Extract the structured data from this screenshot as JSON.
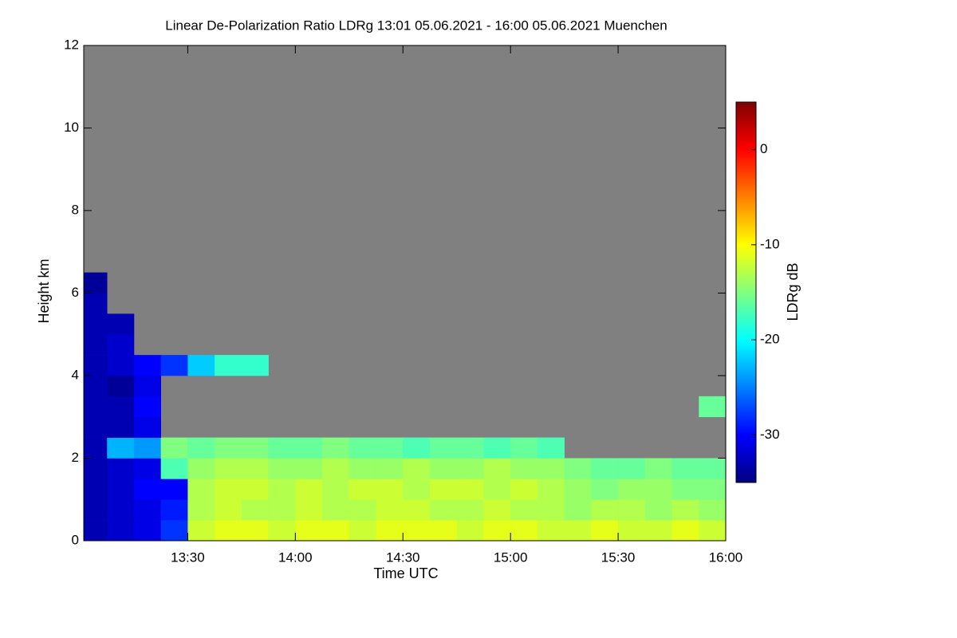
{
  "chart_data": {
    "type": "heatmap",
    "title": "Linear De-Polarization Ratio LDRg   13:01 05.06.2021 - 16:00 05.06.2021 Muenchen",
    "xlabel": "Time UTC",
    "ylabel": "Height km",
    "colorbar_label": "LDRg dB",
    "xlim": [
      781,
      960
    ],
    "xticks": [
      {
        "value": 810,
        "label": "13:30"
      },
      {
        "value": 840,
        "label": "14:00"
      },
      {
        "value": 870,
        "label": "14:30"
      },
      {
        "value": 900,
        "label": "15:00"
      },
      {
        "value": 930,
        "label": "15:30"
      },
      {
        "value": 960,
        "label": "16:00"
      }
    ],
    "ylim": [
      0,
      12
    ],
    "yticks": [
      0,
      2,
      4,
      6,
      8,
      10,
      12
    ],
    "clim": [
      -35,
      5
    ],
    "cticks": [
      -30,
      -20,
      -10,
      0
    ],
    "colormap": [
      "#000080",
      "#0000ff",
      "#0080ff",
      "#00ffff",
      "#80ff80",
      "#ffff00",
      "#ff8000",
      "#ff0000",
      "#800000"
    ],
    "nodata_color": "#808080",
    "xbins": [
      781,
      787.5,
      795,
      802.5,
      810,
      817.5,
      825,
      832.5,
      840,
      847.5,
      855,
      862.5,
      870,
      877.5,
      885,
      892.5,
      900,
      907.5,
      915,
      922.5,
      930,
      937.5,
      945,
      952.5,
      960
    ],
    "ybins": [
      0,
      0.5,
      1,
      1.5,
      2,
      2.5,
      3,
      3.5,
      4,
      4.5,
      5,
      5.5,
      6,
      6.5
    ],
    "values": [
      [
        -33,
        -32,
        -31,
        -28,
        -12,
        -11,
        -11,
        -12,
        -11,
        -11,
        -12,
        -11,
        -11,
        -11,
        -12,
        -11,
        -11,
        -12,
        -12,
        -11,
        -12,
        -12,
        -11,
        -12
      ],
      [
        -33,
        -32,
        -31,
        -29,
        -13,
        -12,
        -13,
        -13,
        -12,
        -13,
        -13,
        -12,
        -12,
        -13,
        -13,
        -12,
        -13,
        -13,
        -14,
        -13,
        -13,
        -14,
        -13,
        -14
      ],
      [
        -33,
        -32,
        -30,
        -30,
        -13,
        -12,
        -12,
        -13,
        -12,
        -13,
        -12,
        -12,
        -13,
        -12,
        -12,
        -13,
        -12,
        -13,
        -14,
        -15,
        -14,
        -14,
        -15,
        -15
      ],
      [
        -33,
        -32,
        -31,
        -17,
        -14,
        -13,
        -13,
        -14,
        -14,
        -13,
        -14,
        -14,
        -13,
        -14,
        -14,
        -13,
        -14,
        -14,
        -15,
        -16,
        -16,
        -15,
        -16,
        -16
      ],
      [
        -33,
        -23,
        -24,
        -15,
        -16,
        -15,
        -15,
        -16,
        -16,
        -15,
        -16,
        -16,
        -17,
        -16,
        -16,
        -17,
        -16,
        -17,
        null,
        null,
        null,
        null,
        null,
        null
      ],
      [
        -33,
        -33,
        -31,
        null,
        null,
        null,
        null,
        null,
        null,
        null,
        null,
        null,
        null,
        null,
        null,
        null,
        null,
        null,
        null,
        null,
        null,
        null,
        null,
        null
      ],
      [
        -33,
        -33,
        -30,
        null,
        null,
        null,
        null,
        null,
        null,
        null,
        null,
        null,
        null,
        null,
        null,
        null,
        null,
        null,
        null,
        null,
        null,
        null,
        null,
        -16
      ],
      [
        -33,
        -34,
        -31,
        null,
        null,
        null,
        null,
        null,
        null,
        null,
        null,
        null,
        null,
        null,
        null,
        null,
        null,
        null,
        null,
        null,
        null,
        null,
        null,
        null
      ],
      [
        -33,
        -32,
        -30,
        -28,
        -22,
        -18,
        -18,
        null,
        null,
        null,
        null,
        null,
        null,
        null,
        null,
        null,
        null,
        null,
        null,
        null,
        null,
        null,
        null,
        null
      ],
      [
        -33,
        -32,
        null,
        null,
        null,
        null,
        null,
        null,
        null,
        null,
        null,
        null,
        null,
        null,
        null,
        null,
        null,
        null,
        null,
        null,
        null,
        null,
        null,
        null
      ],
      [
        -33,
        -33,
        null,
        null,
        null,
        null,
        null,
        null,
        null,
        null,
        null,
        null,
        null,
        null,
        null,
        null,
        null,
        null,
        null,
        null,
        null,
        null,
        null,
        null
      ],
      [
        -33,
        null,
        null,
        null,
        null,
        null,
        null,
        null,
        null,
        null,
        null,
        null,
        null,
        null,
        null,
        null,
        null,
        null,
        null,
        null,
        null,
        null,
        null,
        null
      ],
      [
        -34,
        null,
        null,
        null,
        null,
        null,
        null,
        null,
        null,
        null,
        null,
        null,
        null,
        null,
        null,
        null,
        null,
        null,
        null,
        null,
        null,
        null,
        null,
        null
      ]
    ]
  }
}
